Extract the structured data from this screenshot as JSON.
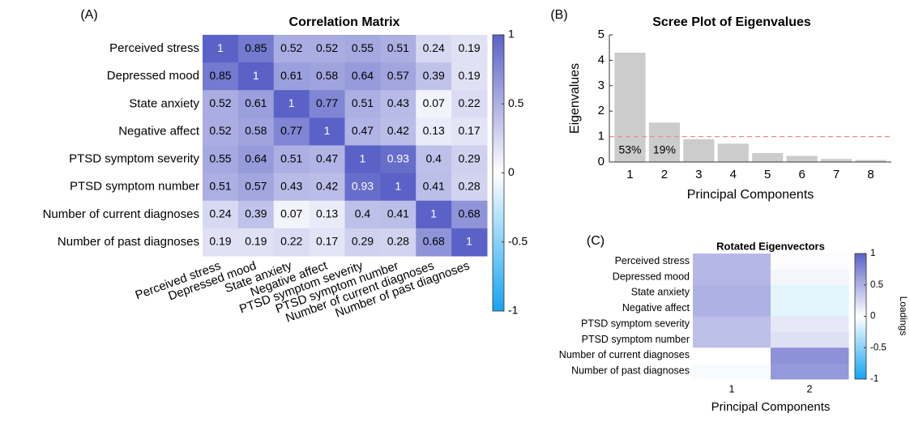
{
  "chart_data": [
    {
      "type": "heatmap",
      "panel_label": "(A)",
      "title": "Correlation Matrix",
      "row_labels": [
        "Perceived stress",
        "Depressed mood",
        "State anxiety",
        "Negative affect",
        "PTSD symptom severity",
        "PTSD symptom number",
        "Number of current diagnoses",
        "Number of past diagnoses"
      ],
      "col_labels": [
        "Perceived stress",
        "Depressed mood",
        "State anxiety",
        "Negative affect",
        "PTSD symptom severity",
        "PTSD symptom number",
        "Number of current diagnoses",
        "Number of past diagnoses"
      ],
      "values": [
        [
          1,
          0.85,
          0.52,
          0.52,
          0.55,
          0.51,
          0.24,
          0.19
        ],
        [
          0.85,
          1,
          0.61,
          0.58,
          0.64,
          0.57,
          0.39,
          0.19
        ],
        [
          0.52,
          0.61,
          1,
          0.77,
          0.51,
          0.43,
          0.07,
          0.22
        ],
        [
          0.52,
          0.58,
          0.77,
          1,
          0.47,
          0.42,
          0.13,
          0.17
        ],
        [
          0.55,
          0.64,
          0.51,
          0.47,
          1,
          0.93,
          0.4,
          0.29
        ],
        [
          0.51,
          0.57,
          0.43,
          0.42,
          0.93,
          1,
          0.41,
          0.28
        ],
        [
          0.24,
          0.39,
          0.07,
          0.13,
          0.4,
          0.41,
          1,
          0.68
        ],
        [
          0.19,
          0.19,
          0.22,
          0.17,
          0.29,
          0.28,
          0.68,
          1
        ]
      ],
      "cell_labels": true,
      "colormap": [
        "#14a4f2",
        "#ffffff",
        "#5a62c7"
      ],
      "clim": [
        -1,
        1
      ],
      "cticks": [
        -1,
        -0.5,
        0,
        0.5,
        1
      ]
    },
    {
      "type": "bar",
      "panel_label": "(B)",
      "title": "Scree Plot of Eigenvalues",
      "xlabel": "Principal Components",
      "ylabel": "Eigenvalues",
      "categories": [
        "1",
        "2",
        "3",
        "4",
        "5",
        "6",
        "7",
        "8"
      ],
      "values": [
        4.3,
        1.55,
        0.9,
        0.72,
        0.35,
        0.24,
        0.12,
        0.08
      ],
      "color": "#cccccc",
      "ylim": [
        0,
        5
      ],
      "yticks": [
        0,
        1,
        2,
        3,
        4,
        5
      ],
      "hline": {
        "y": 1,
        "color": "#f08a8a",
        "style": "dashed"
      },
      "annotations": [
        {
          "text": "53%",
          "category": "1"
        },
        {
          "text": "19%",
          "category": "2"
        }
      ]
    },
    {
      "type": "heatmap",
      "panel_label": "(C)",
      "title": "Rotated Eigenvectors",
      "xlabel": "Principal Components",
      "row_labels": [
        "Perceived stress",
        "Depressed mood",
        "State anxiety",
        "Negative affect",
        "PTSD symptom severity",
        "PTSD symptom number",
        "Number of current diagnoses",
        "Number of past diagnoses"
      ],
      "col_labels": [
        "1",
        "2"
      ],
      "values": [
        [
          0.45,
          0.02
        ],
        [
          0.45,
          0.06
        ],
        [
          0.5,
          -0.12
        ],
        [
          0.5,
          -0.12
        ],
        [
          0.4,
          0.15
        ],
        [
          0.4,
          0.2
        ],
        [
          0.0,
          0.7
        ],
        [
          -0.03,
          0.65
        ]
      ],
      "cell_labels": false,
      "colormap": [
        "#14a4f2",
        "#ffffff",
        "#5a62c7"
      ],
      "clim": [
        -1,
        1
      ],
      "cticks": [
        -1,
        -0.5,
        0,
        0.5,
        1
      ],
      "clabel": "Loadings"
    }
  ]
}
